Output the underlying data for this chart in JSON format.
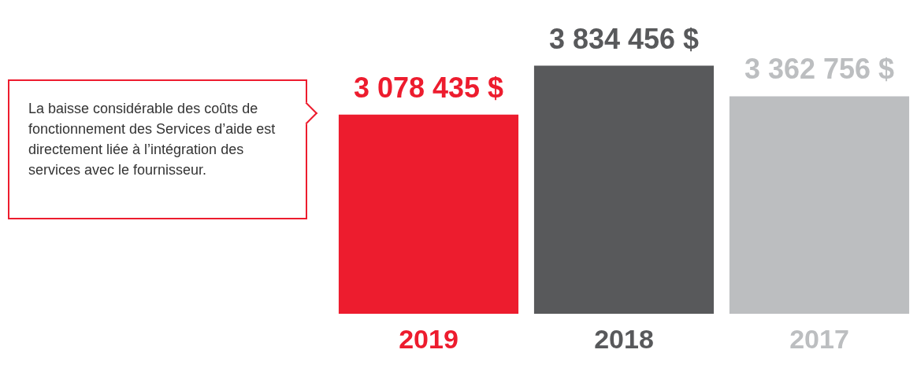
{
  "chart_data": {
    "type": "bar",
    "categories": [
      "2019",
      "2018",
      "2017"
    ],
    "values": [
      3078435,
      3834456,
      3362756
    ],
    "colors": [
      "#ed1c2e",
      "#58595b",
      "#bcbec0"
    ],
    "value_labels": [
      "3 078 435 $",
      "3 834 456 $",
      "3 362 756 $"
    ],
    "grid": false,
    "legend": false,
    "annotations": [
      "La baisse considérable des coûts de fonctionnement des Services d’aide est directement liée à l’intégration des services avec le fournisseur."
    ]
  }
}
